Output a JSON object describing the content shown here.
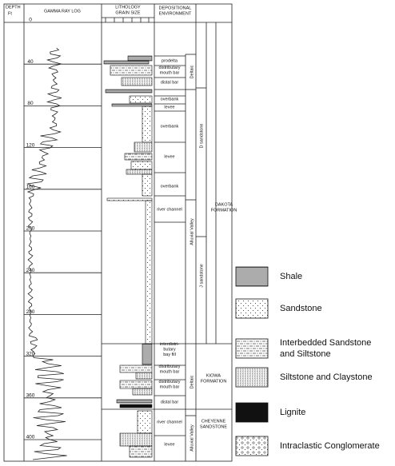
{
  "header": {
    "depth": [
      "DEPTH",
      "Ft"
    ],
    "gamma": "GAMMA RAY LOG",
    "lithology": [
      "LITHOLOGY",
      "GRAIN SIZE"
    ],
    "environment": [
      "DEPOSITIONAL",
      "ENVIRONMENT"
    ]
  },
  "depth_ticks": [
    "0",
    "40",
    "80",
    "120",
    "160",
    "200",
    "240",
    "280",
    "320",
    "360",
    "400"
  ],
  "environments": [
    [
      "prodelta"
    ],
    [
      "distributary",
      "mouth bar"
    ],
    [
      "distal bar"
    ],
    [
      "overbank"
    ],
    [
      "levee"
    ],
    [
      "overbank"
    ],
    [
      "levee"
    ],
    [
      "overbank"
    ],
    [
      "river channel"
    ],
    [
      "interdistri-",
      "butary",
      "bay fill"
    ],
    [
      "distributary",
      "mouth bar"
    ],
    [
      "distributary",
      "mouth bar"
    ],
    [
      "distal bar"
    ],
    [
      "river channel"
    ],
    [
      "levee"
    ]
  ],
  "units": {
    "deltaic_upper": "Deltaic",
    "d_sandstone": "D sandstone",
    "alluvial_upper": "Alluvial Valley",
    "j_sandstone": "J sandstone",
    "dakota": [
      "DAKOTA",
      "FORMATION"
    ],
    "deltaic_lower": "Deltaic",
    "kiowa": [
      "KIOWA",
      "FORMATION"
    ],
    "alluvial_lower": "Alluvial Valley",
    "cheyenne": [
      "CHEYENNE",
      "SANDSTONE"
    ]
  },
  "legend": [
    [
      "Shale"
    ],
    [
      "Sandstone"
    ],
    [
      "Interbedded Sandstone",
      "and Siltstone"
    ],
    [
      "Siltstone and Claystone"
    ],
    [
      "Lignite"
    ],
    [
      "Intraclastic Conglomerate"
    ]
  ]
}
